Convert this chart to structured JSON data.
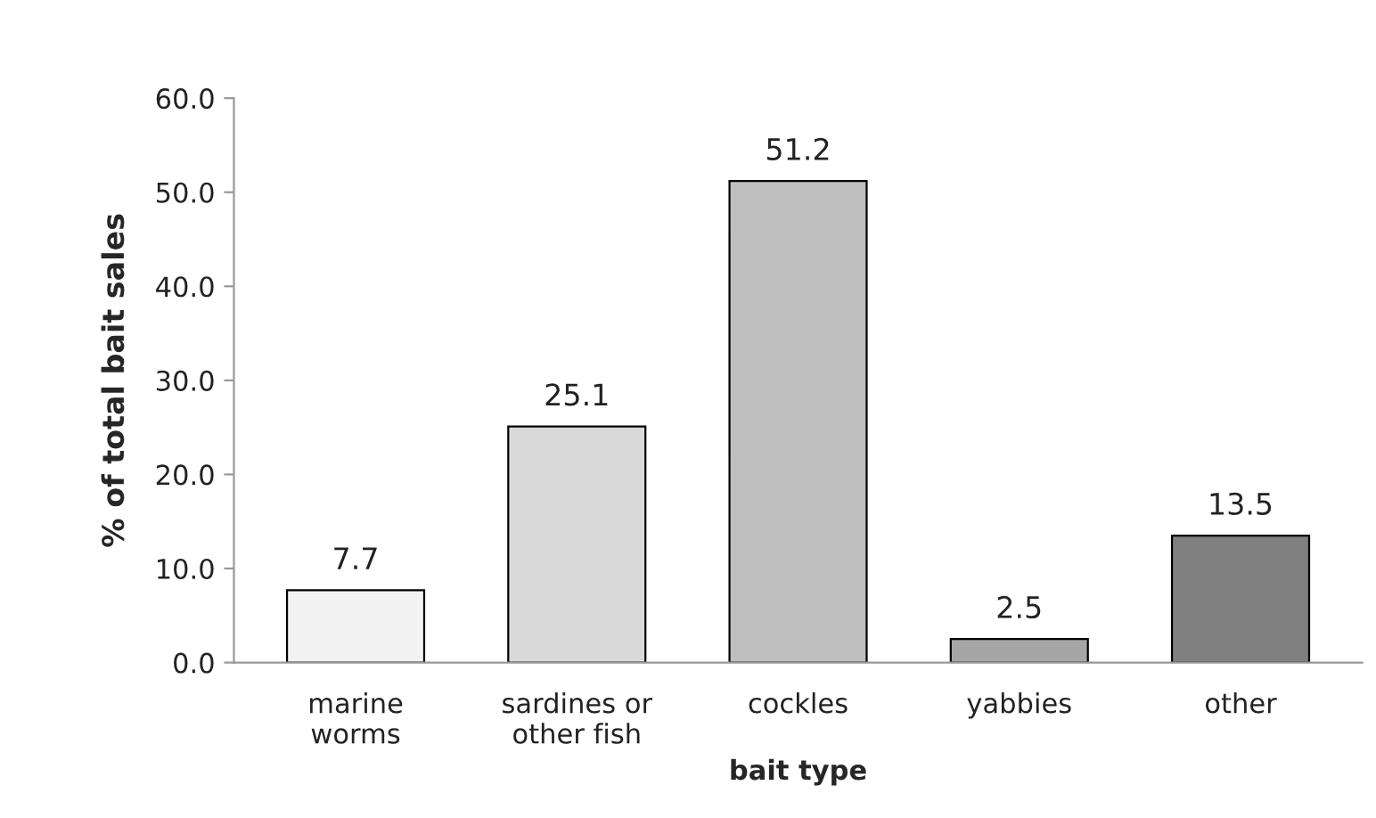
{
  "chart_data": {
    "type": "bar",
    "xlabel": "bait type",
    "ylabel": "% of total bait sales",
    "categories": [
      "marine\nworms",
      "sardines or\nother fish",
      "cockles",
      "yabbies",
      "other"
    ],
    "values": [
      7.7,
      25.1,
      51.2,
      2.5,
      13.5
    ],
    "colors": [
      "#f2f2f2",
      "#d9d9d9",
      "#bfbfbf",
      "#a6a6a6",
      "#808080"
    ],
    "ylim": [
      0,
      60
    ],
    "yticks": [
      {
        "value": 0,
        "label": "0.0"
      },
      {
        "value": 10,
        "label": "10.0"
      },
      {
        "value": 20,
        "label": "20.0"
      },
      {
        "value": 30,
        "label": "30.0"
      },
      {
        "value": 40,
        "label": "40.0"
      },
      {
        "value": 50,
        "label": "50.0"
      },
      {
        "value": 60,
        "label": "60.0"
      }
    ],
    "data_labels": true,
    "grid": false
  }
}
